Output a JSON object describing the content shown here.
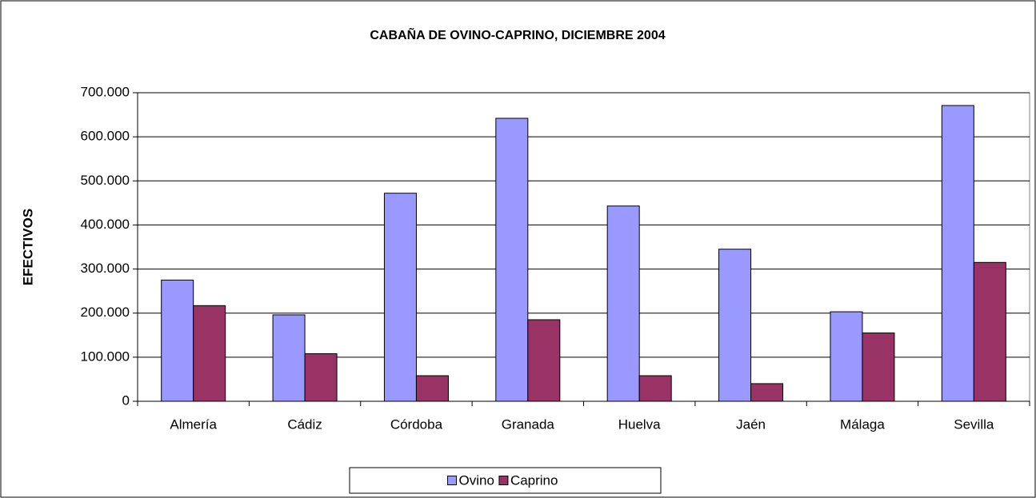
{
  "chart_data": {
    "type": "bar",
    "title": "CABAÑA DE OVINO-CAPRINO, DICIEMBRE 2004",
    "y_label": "EFECTIVOS",
    "categories": [
      "Almería",
      "Cádiz",
      "Córdoba",
      "Granada",
      "Huelva",
      "Jaén",
      "Málaga",
      "Sevilla"
    ],
    "series": [
      {
        "name": "Ovino",
        "color": "#9999ff",
        "values": [
          275000,
          196000,
          472000,
          642000,
          443000,
          345000,
          203000,
          671000
        ]
      },
      {
        "name": "Caprino",
        "color": "#993366",
        "values": [
          217000,
          108000,
          58000,
          185000,
          58000,
          40000,
          155000,
          315000
        ]
      }
    ],
    "ylim": [
      0,
      700000
    ],
    "yticks": [
      0,
      {
        "value": 100000,
        "label": "100.000"
      },
      {
        "value": 200000,
        "label": "200.000"
      },
      {
        "value": 300000,
        "label": "300.000"
      },
      {
        "value": 400000,
        "label": "400.000"
      },
      {
        "value": 500000,
        "label": "500.000"
      },
      {
        "value": 600000,
        "label": "600.000"
      },
      {
        "value": 700000,
        "label": "700.000"
      }
    ],
    "grid": true,
    "legend": "bottom"
  }
}
